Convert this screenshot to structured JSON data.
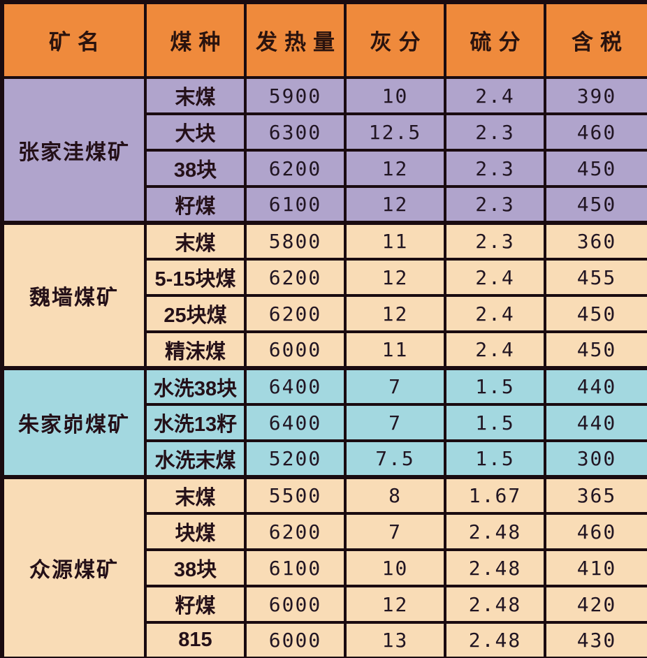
{
  "table": {
    "headers": [
      {
        "key": "mine-name",
        "label": "矿名"
      },
      {
        "key": "coal-type",
        "label": "煤种"
      },
      {
        "key": "calorific-value",
        "label": "发热量"
      },
      {
        "key": "ash",
        "label": "灰分"
      },
      {
        "key": "sulfur",
        "label": "硫分"
      },
      {
        "key": "price-with-tax",
        "label": "含税"
      }
    ],
    "groups": [
      {
        "mine": "张家洼煤矿",
        "bg": "#b0a4cc",
        "rows": [
          [
            "末煤",
            "5900",
            "10",
            "2.4",
            "390"
          ],
          [
            "大块",
            "6300",
            "12.5",
            "2.3",
            "460"
          ],
          [
            "38块",
            "6200",
            "12",
            "2.3",
            "450"
          ],
          [
            "籽煤",
            "6100",
            "12",
            "2.3",
            "450"
          ]
        ]
      },
      {
        "mine": "魏墙煤矿",
        "bg": "#f9dcb6",
        "rows": [
          [
            "末煤",
            "5800",
            "11",
            "2.3",
            "360"
          ],
          [
            "5-15块煤",
            "6200",
            "12",
            "2.4",
            "455"
          ],
          [
            "25块煤",
            "6200",
            "12",
            "2.4",
            "450"
          ],
          [
            "精沫煤",
            "6000",
            "11",
            "2.4",
            "450"
          ]
        ]
      },
      {
        "mine": "朱家峁煤矿",
        "bg": "#a3d8e0",
        "rows": [
          [
            "水洗38块",
            "6400",
            "7",
            "1.5",
            "440"
          ],
          [
            "水洗13籽",
            "6400",
            "7",
            "1.5",
            "440"
          ],
          [
            "水洗末煤",
            "5200",
            "7.5",
            "1.5",
            "300"
          ]
        ]
      },
      {
        "mine": "众源煤矿",
        "bg": "#f9dcb6",
        "rows": [
          [
            "末煤",
            "5500",
            "8",
            "1.67",
            "365"
          ],
          [
            "块煤",
            "6200",
            "7",
            "2.48",
            "460"
          ],
          [
            "38块",
            "6100",
            "10",
            "2.48",
            "410"
          ],
          [
            "籽煤",
            "6000",
            "12",
            "2.48",
            "420"
          ],
          [
            "815",
            "6000",
            "13",
            "2.48",
            "430"
          ]
        ]
      }
    ],
    "colors": {
      "header_bg": "#ef8a3c",
      "group_purple": "#b0a4cc",
      "group_peach": "#f9dcb6",
      "group_cyan": "#a3d8e0",
      "border": "#1a0b10",
      "text": "#241018"
    }
  },
  "chart_data": {
    "type": "table",
    "title": "",
    "columns": [
      "矿名",
      "煤种",
      "发热量",
      "灰分",
      "硫分",
      "含税"
    ],
    "rows": [
      [
        "张家洼煤矿",
        "末煤",
        5900,
        10,
        2.4,
        390
      ],
      [
        "张家洼煤矿",
        "大块",
        6300,
        12.5,
        2.3,
        460
      ],
      [
        "张家洼煤矿",
        "38块",
        6200,
        12,
        2.3,
        450
      ],
      [
        "张家洼煤矿",
        "籽煤",
        6100,
        12,
        2.3,
        450
      ],
      [
        "魏墙煤矿",
        "末煤",
        5800,
        11,
        2.3,
        360
      ],
      [
        "魏墙煤矿",
        "5-15块煤",
        6200,
        12,
        2.4,
        455
      ],
      [
        "魏墙煤矿",
        "25块煤",
        6200,
        12,
        2.4,
        450
      ],
      [
        "魏墙煤矿",
        "精沫煤",
        6000,
        11,
        2.4,
        450
      ],
      [
        "朱家峁煤矿",
        "水洗38块",
        6400,
        7,
        1.5,
        440
      ],
      [
        "朱家峁煤矿",
        "水洗13籽",
        6400,
        7,
        1.5,
        440
      ],
      [
        "朱家峁煤矿",
        "水洗末煤",
        5200,
        7.5,
        1.5,
        300
      ],
      [
        "众源煤矿",
        "末煤",
        5500,
        8,
        1.67,
        365
      ],
      [
        "众源煤矿",
        "块煤",
        6200,
        7,
        2.48,
        460
      ],
      [
        "众源煤矿",
        "38块",
        6100,
        10,
        2.48,
        410
      ],
      [
        "众源煤矿",
        "籽煤",
        6000,
        12,
        2.48,
        420
      ],
      [
        "众源煤矿",
        "815",
        6000,
        13,
        2.48,
        430
      ]
    ]
  }
}
